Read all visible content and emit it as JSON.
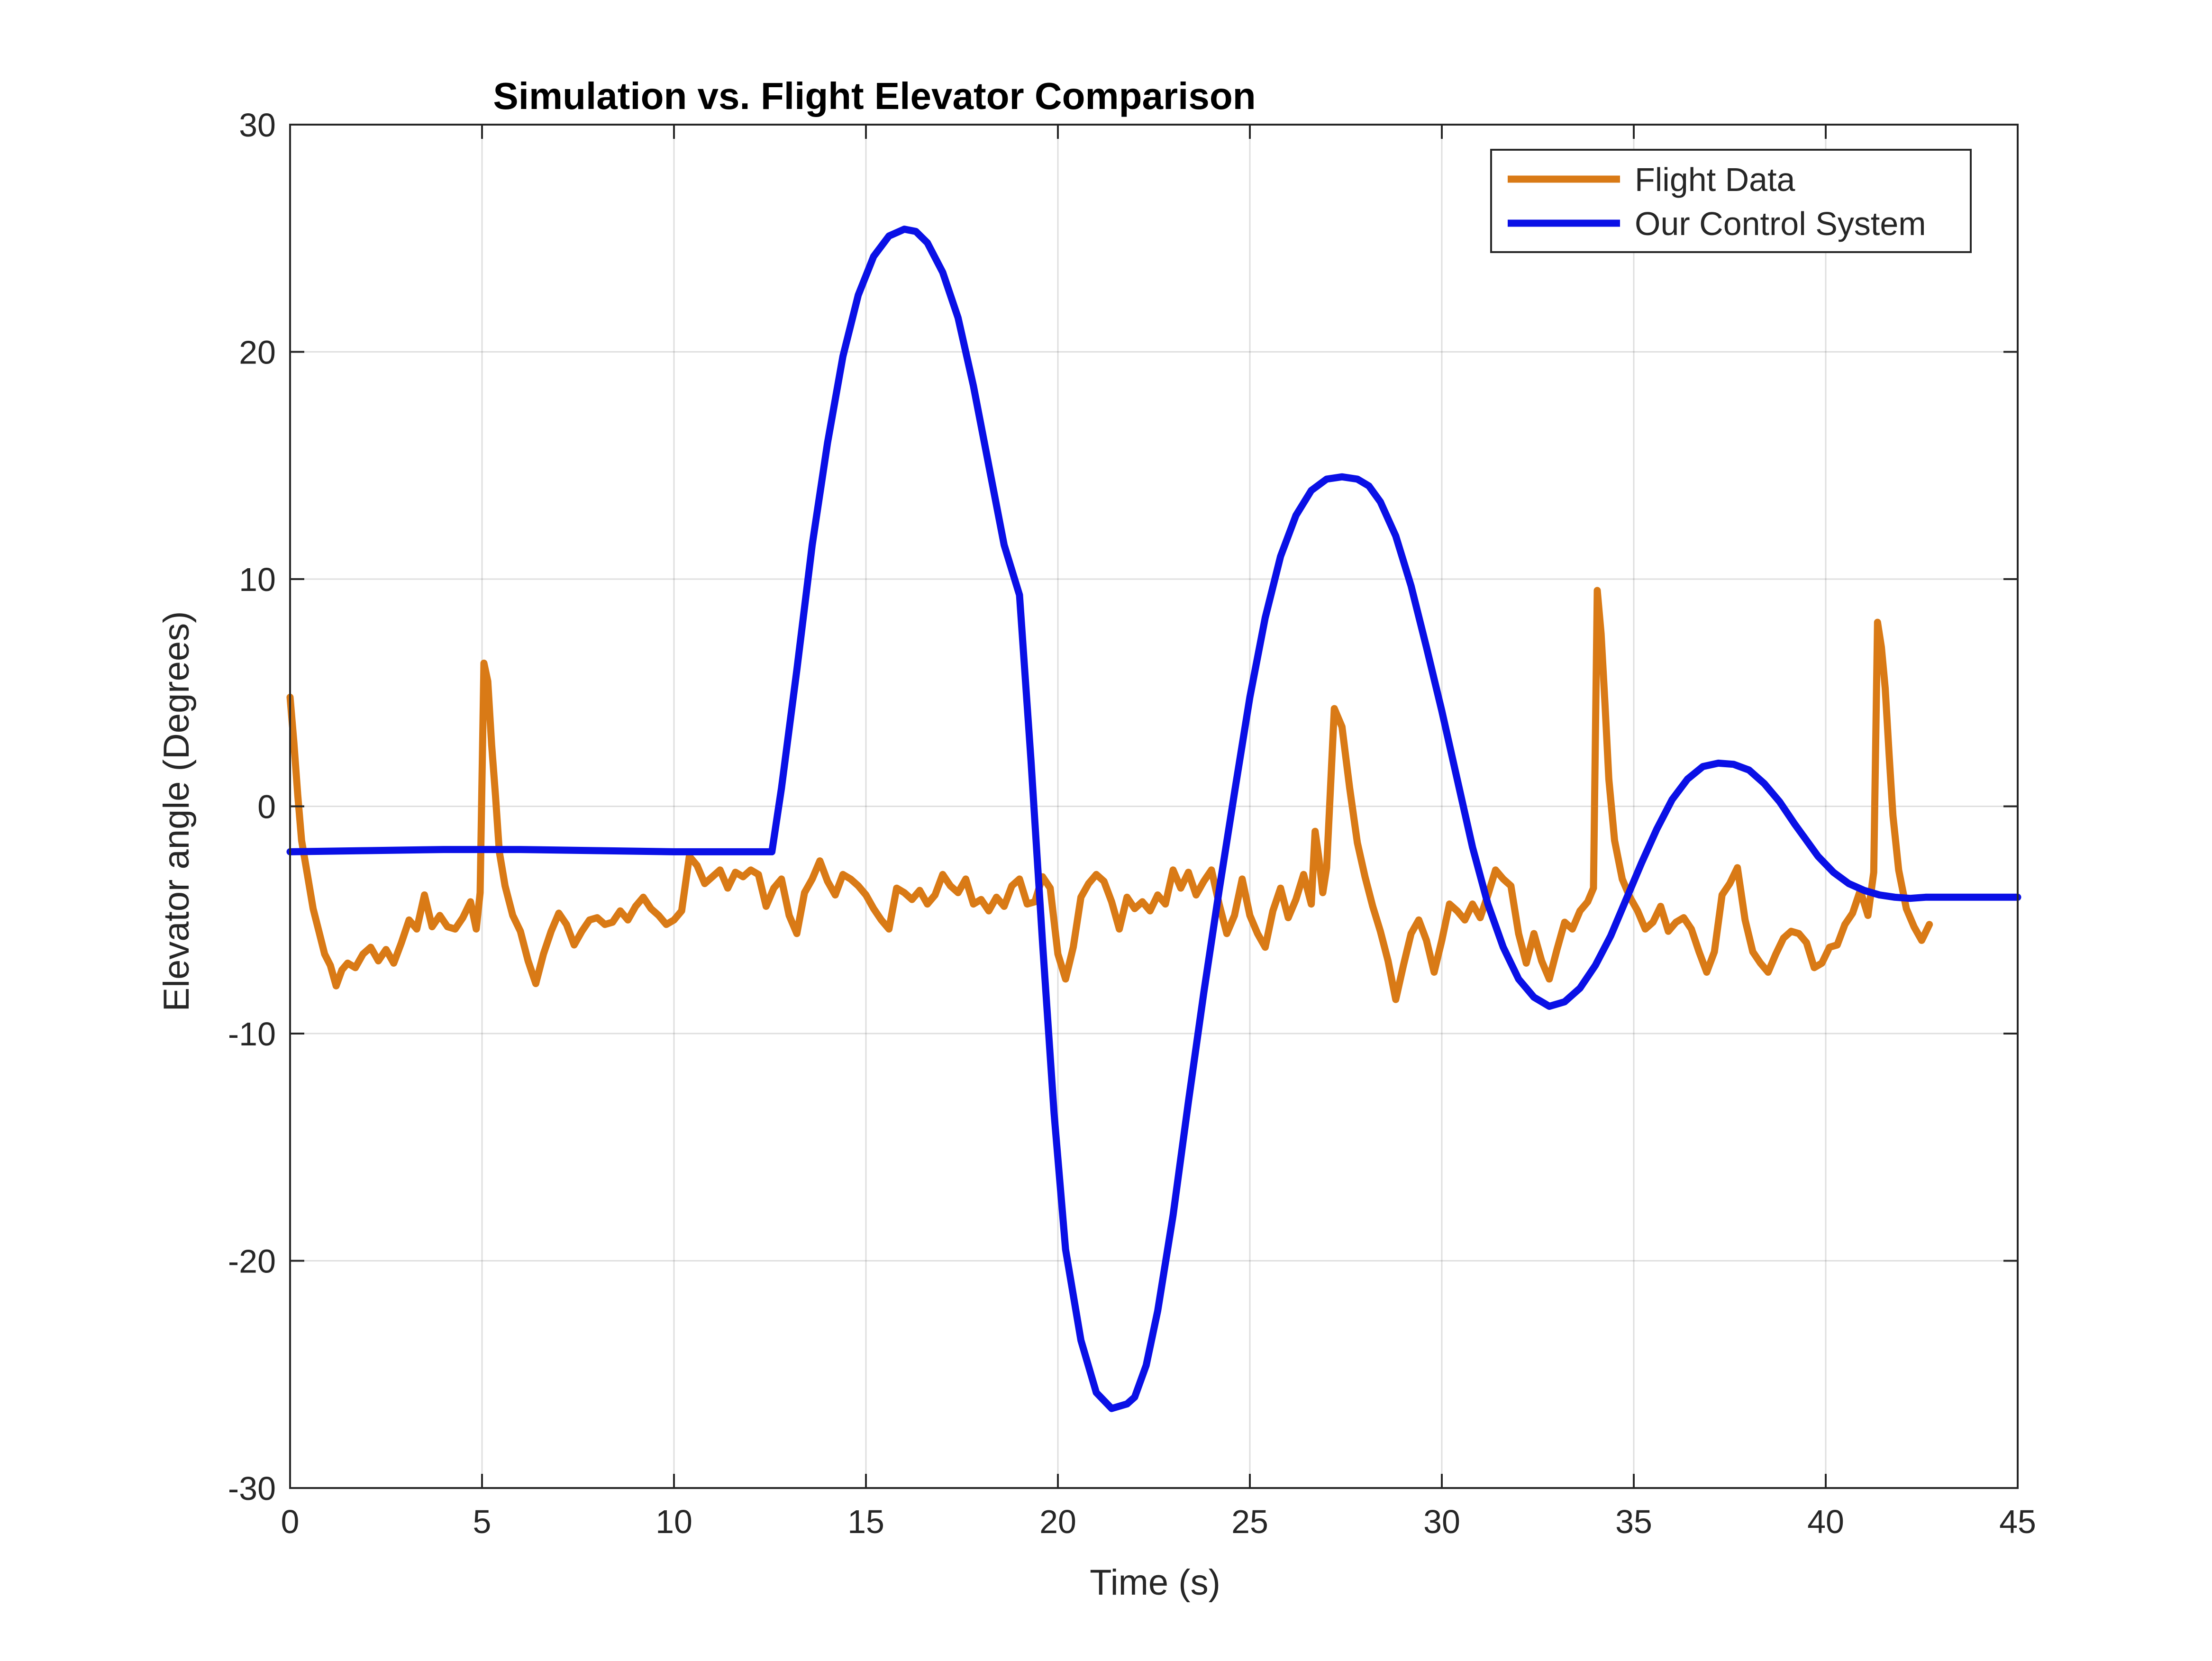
{
  "chart_data": {
    "type": "line",
    "title": "Simulation vs. Flight Elevator Comparison",
    "xlabel": "Time (s)",
    "ylabel": "Elevator angle (Degrees)",
    "xlim": [
      0,
      45
    ],
    "ylim": [
      -30,
      30
    ],
    "xticks": [
      0,
      5,
      10,
      15,
      20,
      25,
      30,
      35,
      40,
      45
    ],
    "xtick_labels": [
      "0",
      "5",
      "10",
      "15",
      "20",
      "25",
      "30",
      "35",
      "40",
      "45"
    ],
    "yticks": [
      -30,
      -20,
      -10,
      0,
      10,
      20,
      30
    ],
    "ytick_labels": [
      "-30",
      "-20",
      "-10",
      "0",
      "10",
      "20",
      "30"
    ],
    "grid": true,
    "legend_position": "top-right",
    "series": [
      {
        "name": "Flight Data",
        "color": "#D97A16",
        "x": [
          0,
          0.1,
          0.2,
          0.3,
          0.45,
          0.6,
          0.75,
          0.9,
          1.05,
          1.2,
          1.35,
          1.5,
          1.7,
          1.9,
          2.1,
          2.3,
          2.5,
          2.7,
          2.9,
          3.1,
          3.3,
          3.5,
          3.7,
          3.9,
          4.1,
          4.3,
          4.5,
          4.7,
          4.85,
          4.95,
          5.05,
          5.15,
          5.25,
          5.35,
          5.45,
          5.6,
          5.8,
          6.0,
          6.2,
          6.4,
          6.6,
          6.8,
          7.0,
          7.2,
          7.4,
          7.6,
          7.8,
          8.0,
          8.2,
          8.4,
          8.6,
          8.8,
          9.0,
          9.2,
          9.4,
          9.6,
          9.8,
          10.0,
          10.2,
          10.4,
          10.6,
          10.8,
          11.0,
          11.2,
          11.4,
          11.6,
          11.8,
          12.0,
          12.2,
          12.4,
          12.6,
          12.8,
          13.0,
          13.2,
          13.4,
          13.6,
          13.8,
          14.0,
          14.2,
          14.4,
          14.6,
          14.8,
          15.0,
          15.2,
          15.4,
          15.6,
          15.8,
          16.0,
          16.2,
          16.4,
          16.6,
          16.8,
          17.0,
          17.2,
          17.4,
          17.6,
          17.8,
          18.0,
          18.2,
          18.4,
          18.6,
          18.8,
          19.0,
          19.2,
          19.4,
          19.6,
          19.8,
          20.0,
          20.2,
          20.4,
          20.6,
          20.8,
          21.0,
          21.2,
          21.4,
          21.6,
          21.8,
          22.0,
          22.2,
          22.4,
          22.6,
          22.8,
          23.0,
          23.2,
          23.4,
          23.6,
          23.8,
          24.0,
          24.2,
          24.4,
          24.6,
          24.8,
          25.0,
          25.2,
          25.4,
          25.6,
          25.8,
          26.0,
          26.2,
          26.4,
          26.6,
          26.7,
          26.8,
          26.9,
          27.0,
          27.2,
          27.4,
          27.6,
          27.8,
          28.0,
          28.2,
          28.4,
          28.6,
          28.8,
          29.0,
          29.2,
          29.4,
          29.6,
          29.8,
          30.0,
          30.2,
          30.4,
          30.6,
          30.8,
          31.0,
          31.2,
          31.4,
          31.6,
          31.8,
          32.0,
          32.2,
          32.4,
          32.6,
          32.8,
          33.0,
          33.2,
          33.4,
          33.6,
          33.8,
          33.95,
          34.05,
          34.15,
          34.25,
          34.35,
          34.5,
          34.7,
          34.9,
          35.1,
          35.3,
          35.5,
          35.7,
          35.9,
          36.1,
          36.3,
          36.5,
          36.7,
          36.9,
          37.1,
          37.3,
          37.5,
          37.7,
          37.9,
          38.1,
          38.3,
          38.5,
          38.7,
          38.9,
          39.1,
          39.3,
          39.5,
          39.7,
          39.9,
          40.1,
          40.3,
          40.5,
          40.7,
          40.9,
          41.1,
          41.25,
          41.35,
          41.45,
          41.55,
          41.65,
          41.75,
          41.9,
          42.1,
          42.3,
          42.5,
          42.7
        ],
        "values": [
          4.8,
          2.8,
          0.5,
          -1.5,
          -3.0,
          -4.5,
          -5.5,
          -6.5,
          -7.0,
          -7.9,
          -7.2,
          -6.9,
          -7.1,
          -6.5,
          -6.2,
          -6.8,
          -6.3,
          -6.9,
          -6.0,
          -5.0,
          -5.4,
          -3.9,
          -5.3,
          -4.8,
          -5.3,
          -5.4,
          -4.9,
          -4.2,
          -5.4,
          -3.8,
          6.3,
          5.5,
          2.7,
          0.5,
          -2.0,
          -3.5,
          -4.8,
          -5.5,
          -6.8,
          -7.8,
          -6.5,
          -5.5,
          -4.7,
          -5.2,
          -6.1,
          -5.5,
          -5.0,
          -4.9,
          -5.2,
          -5.1,
          -4.6,
          -5.0,
          -4.4,
          -4.0,
          -4.5,
          -4.8,
          -5.2,
          -5.0,
          -4.6,
          -2.2,
          -2.6,
          -3.4,
          -3.1,
          -2.8,
          -3.6,
          -2.9,
          -3.1,
          -2.8,
          -3.0,
          -4.4,
          -3.6,
          -3.2,
          -4.8,
          -5.6,
          -3.8,
          -3.2,
          -2.4,
          -3.3,
          -3.9,
          -3.0,
          -3.2,
          -3.5,
          -3.9,
          -4.5,
          -5.0,
          -5.4,
          -3.6,
          -3.8,
          -4.1,
          -3.7,
          -4.3,
          -3.9,
          -3.0,
          -3.5,
          -3.8,
          -3.2,
          -4.3,
          -4.1,
          -4.6,
          -4.0,
          -4.4,
          -3.5,
          -3.2,
          -4.3,
          -4.2,
          -3.1,
          -3.6,
          -6.5,
          -7.6,
          -6.2,
          -4.0,
          -3.4,
          -3.0,
          -3.3,
          -4.2,
          -5.4,
          -4.0,
          -4.5,
          -4.2,
          -4.6,
          -3.9,
          -4.3,
          -2.8,
          -3.6,
          -2.9,
          -3.9,
          -3.3,
          -2.8,
          -4.3,
          -5.6,
          -4.8,
          -3.2,
          -4.8,
          -5.6,
          -6.2,
          -4.6,
          -3.6,
          -4.9,
          -4.1,
          -3.0,
          -4.3,
          -1.1,
          -2.3,
          -3.8,
          -2.7,
          4.3,
          3.5,
          0.8,
          -1.6,
          -3.1,
          -4.4,
          -5.5,
          -6.8,
          -8.5,
          -7.0,
          -5.6,
          -5.0,
          -5.9,
          -7.3,
          -5.9,
          -4.3,
          -4.6,
          -5.0,
          -4.3,
          -4.9,
          -3.9,
          -2.8,
          -3.2,
          -3.5,
          -5.6,
          -6.9,
          -5.6,
          -6.8,
          -7.6,
          -6.3,
          -5.1,
          -5.4,
          -4.6,
          -4.2,
          -3.6,
          9.5,
          7.6,
          4.5,
          1.2,
          -1.5,
          -3.2,
          -4.0,
          -4.6,
          -5.4,
          -5.1,
          -4.4,
          -5.5,
          -5.1,
          -4.9,
          -5.4,
          -6.4,
          -7.3,
          -6.4,
          -3.9,
          -3.4,
          -2.7,
          -5.0,
          -6.4,
          -6.9,
          -7.3,
          -6.5,
          -5.8,
          -5.5,
          -5.6,
          -6.0,
          -7.1,
          -6.9,
          -6.2,
          -6.1,
          -5.2,
          -4.7,
          -3.7,
          -4.8,
          -2.9,
          8.1,
          7.0,
          5.2,
          2.3,
          -0.4,
          -2.8,
          -4.5,
          -5.3,
          -5.9,
          -5.2
        ]
      },
      {
        "name": "Our Control System",
        "color": "#0A10E6",
        "x": [
          0,
          2,
          4,
          6,
          8,
          10,
          12,
          12.55,
          12.8,
          13.2,
          13.6,
          14.0,
          14.4,
          14.8,
          15.2,
          15.6,
          16.0,
          16.3,
          16.6,
          17.0,
          17.4,
          17.8,
          18.2,
          18.6,
          19.0,
          19.3,
          19.6,
          19.9,
          20.2,
          20.6,
          21.0,
          21.4,
          21.8,
          22.0,
          22.3,
          22.6,
          23.0,
          23.4,
          23.8,
          24.2,
          24.6,
          25.0,
          25.4,
          25.8,
          26.2,
          26.6,
          27.0,
          27.4,
          27.8,
          28.1,
          28.4,
          28.8,
          29.2,
          29.6,
          30.0,
          30.4,
          30.8,
          31.2,
          31.6,
          32.0,
          32.4,
          32.8,
          33.2,
          33.6,
          34.0,
          34.4,
          34.8,
          35.2,
          35.6,
          36.0,
          36.4,
          36.8,
          37.2,
          37.6,
          38.0,
          38.4,
          38.8,
          39.2,
          39.5,
          39.8,
          40.2,
          40.6,
          41.0,
          41.4,
          41.8,
          42.2,
          42.6,
          43.0,
          43.4,
          43.8,
          44.2,
          44.6,
          45.0
        ],
        "values": [
          -2.0,
          -1.95,
          -1.9,
          -1.9,
          -1.95,
          -2.0,
          -2.0,
          -2.0,
          0.8,
          6.0,
          11.5,
          16.0,
          19.8,
          22.5,
          24.2,
          25.1,
          25.4,
          25.3,
          24.8,
          23.5,
          21.5,
          18.5,
          15.0,
          11.5,
          9.3,
          2.0,
          -6.0,
          -13.5,
          -19.5,
          -23.5,
          -25.8,
          -26.5,
          -26.3,
          -26.0,
          -24.6,
          -22.2,
          -18.0,
          -13.0,
          -8.2,
          -3.7,
          0.6,
          4.8,
          8.3,
          11.0,
          12.8,
          13.9,
          14.4,
          14.5,
          14.4,
          14.1,
          13.4,
          11.9,
          9.7,
          7.0,
          4.2,
          1.2,
          -1.8,
          -4.3,
          -6.2,
          -7.6,
          -8.4,
          -8.8,
          -8.6,
          -8.0,
          -7.0,
          -5.7,
          -4.1,
          -2.5,
          -1.0,
          0.3,
          1.2,
          1.75,
          1.9,
          1.85,
          1.6,
          1.0,
          0.2,
          -0.8,
          -1.5,
          -2.2,
          -2.9,
          -3.4,
          -3.7,
          -3.9,
          -4.0,
          -4.05,
          -4.0,
          -4.0,
          -4.0,
          -4.0,
          -4.0,
          -4.0,
          -4.0
        ]
      }
    ]
  }
}
